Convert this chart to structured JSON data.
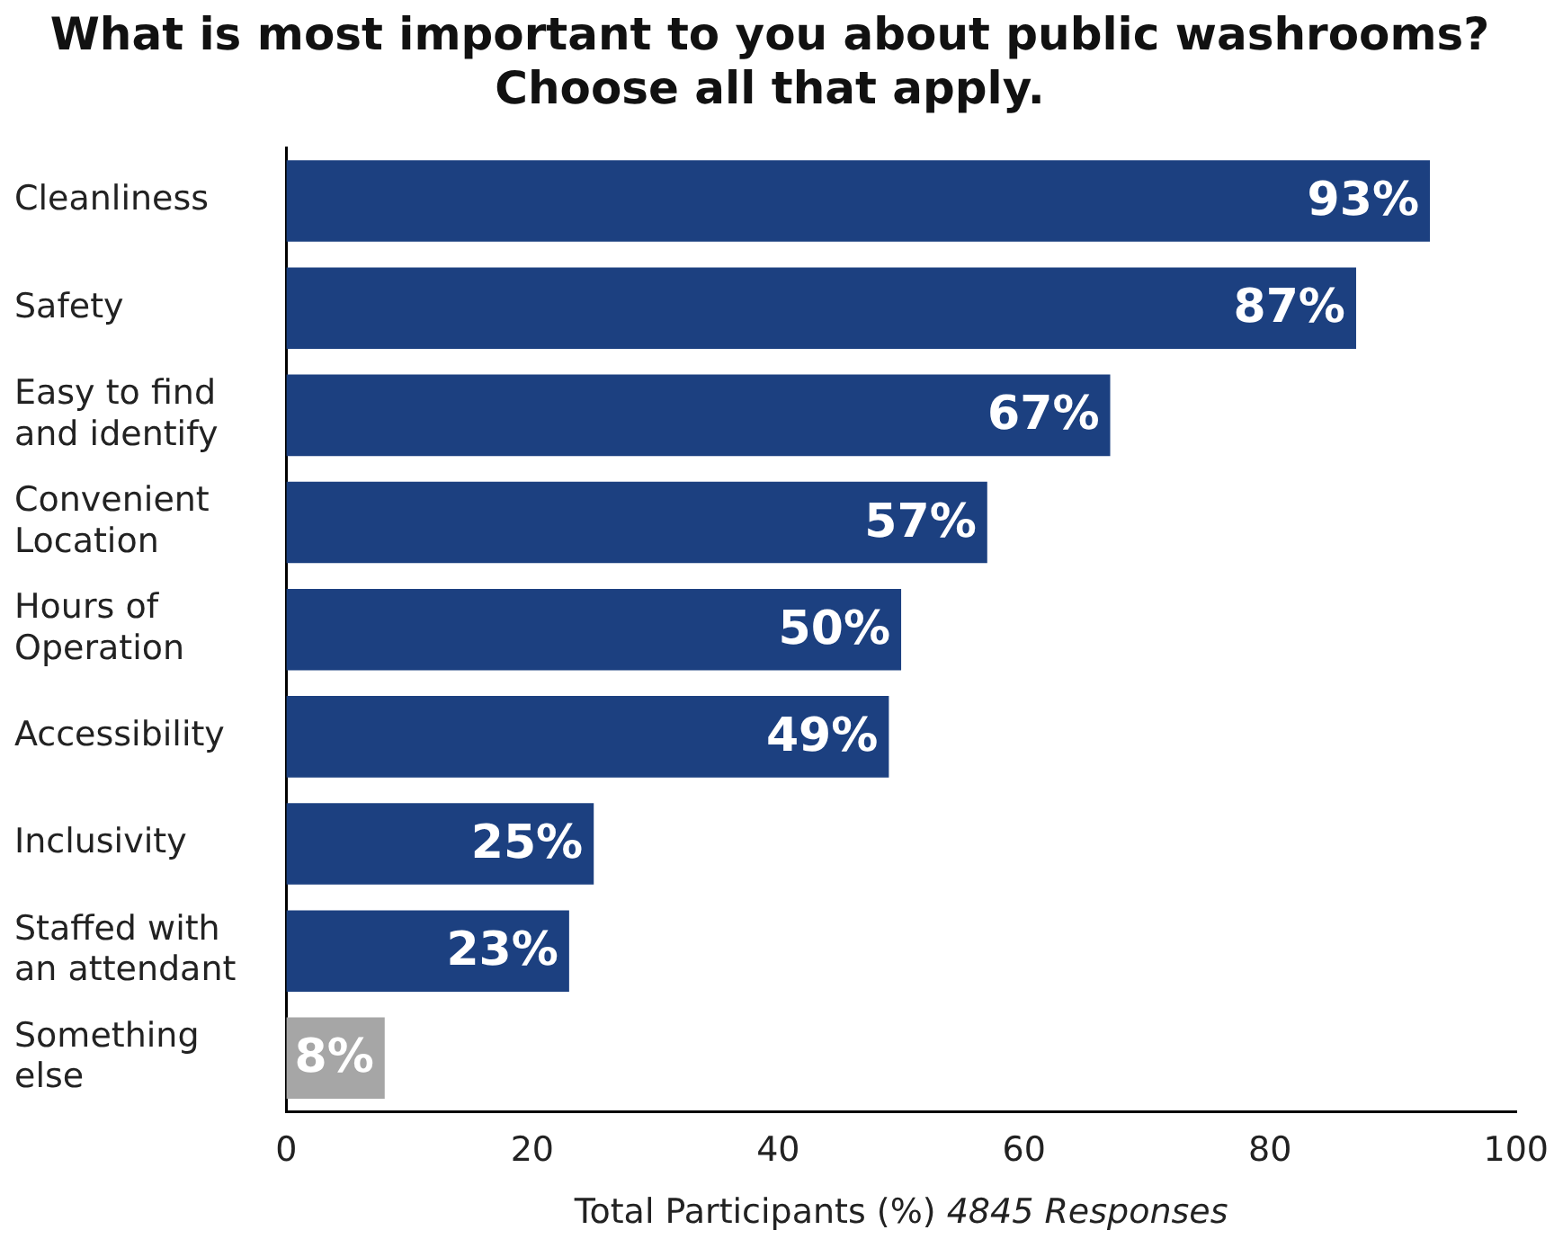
{
  "chart_data": {
    "type": "bar",
    "orientation": "horizontal",
    "title": "What is most important to you about public washrooms?\nChoose all that apply.",
    "xlabel": "Total Participants (%)",
    "annotations": [
      "4845 Responses"
    ],
    "categories": [
      "Cleanliness",
      "Safety",
      "Easy to find\nand identify",
      "Convenient\nLocation",
      "Hours of\nOperation",
      "Accessibility",
      "Inclusivity",
      "Staffed with\nan attendant",
      "Something\nelse"
    ],
    "values": [
      93,
      87,
      67,
      57,
      50,
      49,
      25,
      23,
      8
    ],
    "value_labels": [
      "93%",
      "87%",
      "67%",
      "57%",
      "50%",
      "49%",
      "25%",
      "23%",
      "8%"
    ],
    "colors": [
      "#1c4080",
      "#1c4080",
      "#1c4080",
      "#1c4080",
      "#1c4080",
      "#1c4080",
      "#1c4080",
      "#1c4080",
      "#a6a6a6"
    ],
    "xlim": [
      0,
      100
    ],
    "xticks": [
      0,
      20,
      40,
      60,
      80,
      100
    ],
    "grid": false,
    "legend": false
  }
}
